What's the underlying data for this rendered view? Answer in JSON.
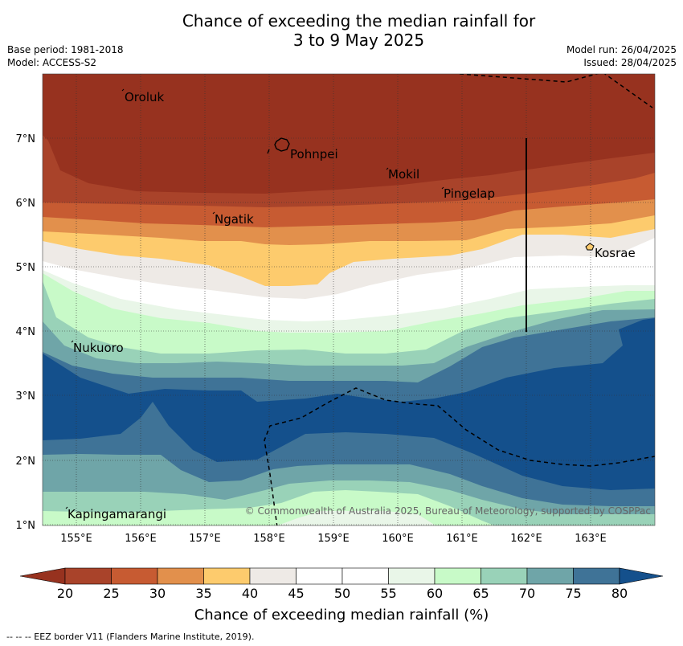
{
  "header": {
    "title_line1": "Chance of exceeding the median rainfall for",
    "title_line2": "3 to 9 May 2025",
    "base_period": "Base period: 1981-2018",
    "model": "Model: ACCESS-S2",
    "model_run": "Model run: 26/04/2025",
    "issued": "Issued: 28/04/2025"
  },
  "map": {
    "lat_ticks": [
      "7°N",
      "6°N",
      "5°N",
      "4°N",
      "3°N",
      "2°N",
      "1°N"
    ],
    "lon_ticks": [
      "155°E",
      "156°E",
      "157°E",
      "158°E",
      "159°E",
      "160°E",
      "161°E",
      "162°E",
      "163°E"
    ],
    "places": [
      {
        "name": "Oroluk"
      },
      {
        "name": "Pohnpei"
      },
      {
        "name": "Mokil"
      },
      {
        "name": "Pingelap"
      },
      {
        "name": "Ngatik"
      },
      {
        "name": "Kosrae"
      },
      {
        "name": "Nukuoro"
      },
      {
        "name": "Kapingamarangi"
      }
    ],
    "copyright": "© Commonwealth of Australia 2025, Bureau of Meteorology, supported by COSPPac"
  },
  "colorbar": {
    "ticks": [
      "20",
      "25",
      "30",
      "35",
      "40",
      "45",
      "50",
      "55",
      "60",
      "65",
      "70",
      "75",
      "80"
    ],
    "colors": [
      "#a9432a",
      "#c75b32",
      "#e2904c",
      "#fdcb6d",
      "#eeeae6",
      "#ffffff",
      "#ffffff",
      "#e9f6e8",
      "#c8fac8",
      "#99d2b8",
      "#6fa5a8",
      "#3f7397",
      "#14508c"
    ],
    "below_color": "#97321f",
    "above_color": "#14508c",
    "title": "Chance of exceeding median rainfall (%)"
  },
  "footnote": "--  --  -- EEZ border V11 (Flanders Marine Institute, 2019)."
}
